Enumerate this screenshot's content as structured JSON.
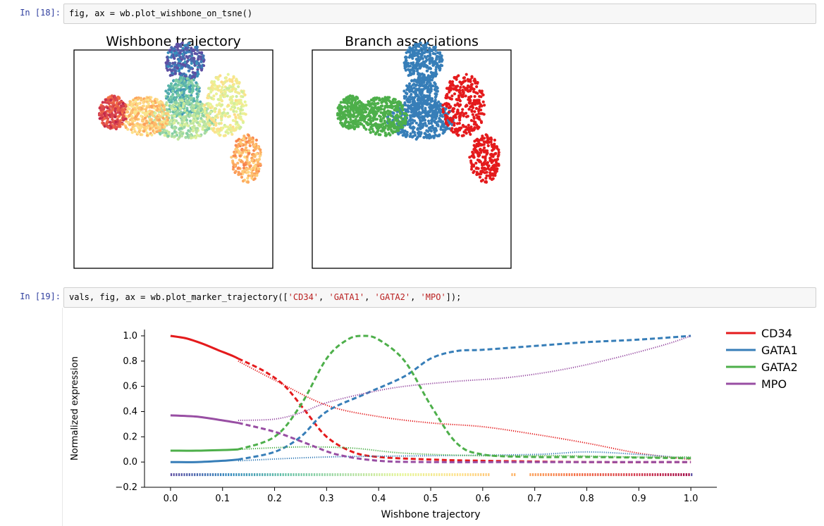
{
  "cells": [
    {
      "prompt": "In [18]:",
      "code": "fig, ax = wb.plot_wishbone_on_tsne()"
    },
    {
      "prompt": "In [19]:",
      "code_parts": [
        "vals, fig, ax = wb.plot_marker_trajectory([",
        "'CD34'",
        ", ",
        "'GATA1'",
        ", ",
        "'GATA2'",
        ", ",
        "'MPO'",
        "]);"
      ]
    }
  ],
  "tsne_plots": {
    "left_title": "Wishbone trajectory",
    "right_title": "Branch associations"
  },
  "colors": {
    "CD34": "#e41a1c",
    "GATA1": "#377eb8",
    "GATA2": "#4daf4a",
    "MPO": "#984ea3"
  },
  "chart_data": {
    "type": "line",
    "title": "",
    "xlabel": "Wishbone trajectory",
    "ylabel": "Normalized expression",
    "xlim": [
      -0.05,
      1.05
    ],
    "ylim": [
      -0.2,
      1.05
    ],
    "xticks": [
      0.0,
      0.1,
      0.2,
      0.3,
      0.4,
      0.5,
      0.6,
      0.7,
      0.8,
      0.9,
      1.0
    ],
    "xtick_labels": [
      "0.0",
      "0.1",
      "0.2",
      "0.3",
      "0.4",
      "0.5",
      "0.6",
      "0.7",
      "0.8",
      "0.9",
      "1.0"
    ],
    "yticks": [
      -0.2,
      0.0,
      0.2,
      0.4,
      0.6,
      0.8,
      1.0
    ],
    "ytick_labels": [
      "−0.2",
      "0.0",
      "0.2",
      "0.4",
      "0.6",
      "0.8",
      "1.0"
    ],
    "legend": [
      "CD34",
      "GATA1",
      "GATA2",
      "MPO"
    ],
    "legend_position": "right",
    "trajectory_bar_y": -0.1,
    "series": [
      {
        "name": "CD34",
        "trunk": [
          [
            0.0,
            1.0
          ],
          [
            0.03,
            0.98
          ],
          [
            0.06,
            0.94
          ],
          [
            0.09,
            0.89
          ],
          [
            0.12,
            0.84
          ],
          [
            0.13,
            0.82
          ]
        ],
        "branch_dashed": [
          [
            0.13,
            0.82
          ],
          [
            0.18,
            0.72
          ],
          [
            0.22,
            0.6
          ],
          [
            0.26,
            0.4
          ],
          [
            0.3,
            0.2
          ],
          [
            0.35,
            0.08
          ],
          [
            0.4,
            0.04
          ],
          [
            0.5,
            0.02
          ],
          [
            0.6,
            0.01
          ],
          [
            0.8,
            0.0
          ],
          [
            1.0,
            0.0
          ]
        ],
        "branch_dotted": [
          [
            0.13,
            0.8
          ],
          [
            0.2,
            0.65
          ],
          [
            0.3,
            0.45
          ],
          [
            0.4,
            0.36
          ],
          [
            0.5,
            0.31
          ],
          [
            0.6,
            0.28
          ],
          [
            0.7,
            0.22
          ],
          [
            0.8,
            0.15
          ],
          [
            0.9,
            0.07
          ],
          [
            1.0,
            0.02
          ]
        ]
      },
      {
        "name": "GATA1",
        "trunk": [
          [
            0.0,
            0.0
          ],
          [
            0.05,
            0.0
          ],
          [
            0.1,
            0.01
          ],
          [
            0.13,
            0.02
          ]
        ],
        "branch_dashed": [
          [
            0.13,
            0.02
          ],
          [
            0.2,
            0.08
          ],
          [
            0.25,
            0.2
          ],
          [
            0.3,
            0.4
          ],
          [
            0.38,
            0.55
          ],
          [
            0.45,
            0.68
          ],
          [
            0.5,
            0.82
          ],
          [
            0.55,
            0.88
          ],
          [
            0.6,
            0.89
          ],
          [
            0.7,
            0.92
          ],
          [
            0.8,
            0.95
          ],
          [
            0.9,
            0.97
          ],
          [
            1.0,
            1.0
          ]
        ],
        "branch_dotted": [
          [
            0.13,
            0.01
          ],
          [
            0.3,
            0.04
          ],
          [
            0.5,
            0.05
          ],
          [
            0.7,
            0.06
          ],
          [
            0.8,
            0.08
          ],
          [
            0.9,
            0.06
          ],
          [
            1.0,
            0.03
          ]
        ]
      },
      {
        "name": "GATA2",
        "trunk": [
          [
            0.0,
            0.09
          ],
          [
            0.05,
            0.09
          ],
          [
            0.1,
            0.095
          ],
          [
            0.13,
            0.1
          ]
        ],
        "branch_dashed": [
          [
            0.13,
            0.1
          ],
          [
            0.2,
            0.2
          ],
          [
            0.25,
            0.45
          ],
          [
            0.3,
            0.82
          ],
          [
            0.34,
            0.97
          ],
          [
            0.37,
            1.0
          ],
          [
            0.4,
            0.97
          ],
          [
            0.45,
            0.8
          ],
          [
            0.5,
            0.45
          ],
          [
            0.55,
            0.15
          ],
          [
            0.6,
            0.06
          ],
          [
            0.7,
            0.04
          ],
          [
            0.8,
            0.04
          ],
          [
            1.0,
            0.03
          ]
        ],
        "branch_dotted": [
          [
            0.13,
            0.1
          ],
          [
            0.25,
            0.12
          ],
          [
            0.35,
            0.11
          ],
          [
            0.45,
            0.07
          ],
          [
            0.6,
            0.05
          ],
          [
            0.75,
            0.05
          ],
          [
            0.9,
            0.04
          ],
          [
            1.0,
            0.04
          ]
        ]
      },
      {
        "name": "MPO",
        "trunk": [
          [
            0.0,
            0.37
          ],
          [
            0.05,
            0.36
          ],
          [
            0.1,
            0.33
          ],
          [
            0.13,
            0.31
          ]
        ],
        "branch_dashed": [
          [
            0.13,
            0.31
          ],
          [
            0.2,
            0.24
          ],
          [
            0.26,
            0.15
          ],
          [
            0.32,
            0.06
          ],
          [
            0.4,
            0.01
          ],
          [
            0.5,
            0.0
          ],
          [
            0.7,
            0.0
          ],
          [
            1.0,
            0.0
          ]
        ],
        "branch_dotted": [
          [
            0.13,
            0.33
          ],
          [
            0.2,
            0.34
          ],
          [
            0.25,
            0.39
          ],
          [
            0.3,
            0.47
          ],
          [
            0.38,
            0.55
          ],
          [
            0.45,
            0.6
          ],
          [
            0.55,
            0.64
          ],
          [
            0.65,
            0.67
          ],
          [
            0.75,
            0.73
          ],
          [
            0.85,
            0.82
          ],
          [
            0.95,
            0.93
          ],
          [
            1.0,
            1.0
          ]
        ]
      }
    ]
  }
}
